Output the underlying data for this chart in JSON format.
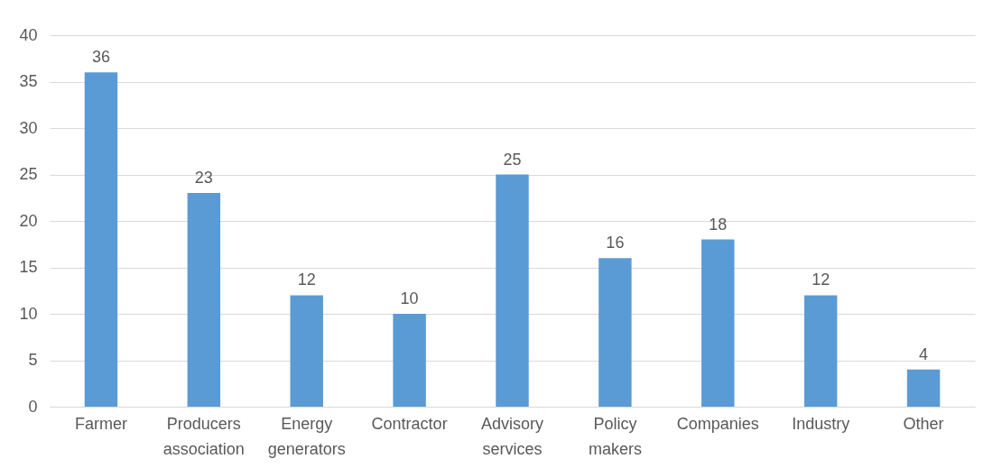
{
  "chart_data": {
    "type": "bar",
    "categories": [
      "Farmer",
      "Producers association",
      "Energy generators",
      "Contractor",
      "Advisory services",
      "Policy makers",
      "Companies",
      "Industry",
      "Other"
    ],
    "values": [
      36,
      23,
      12,
      10,
      25,
      16,
      18,
      12,
      4
    ],
    "color": "#5b9bd5",
    "ylim": [
      0,
      40
    ],
    "yticks": [
      0,
      5,
      10,
      15,
      20,
      25,
      30,
      35,
      40
    ],
    "grid": "y",
    "data_labels": true
  }
}
